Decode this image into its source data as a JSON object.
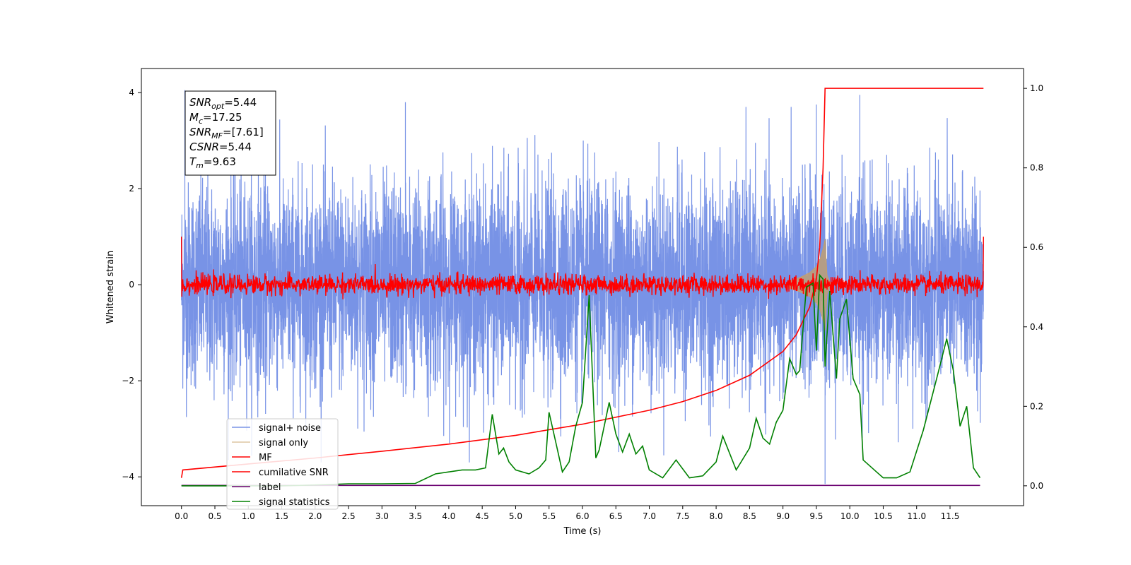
{
  "chart_data": {
    "type": "line",
    "xlabel": "Time (s)",
    "ylabel": "Whitened strain",
    "xlim": [
      -0.6,
      12.6
    ],
    "ylim_left": [
      -4.6,
      4.5
    ],
    "ylim_right": [
      -0.05,
      1.05
    ],
    "x_ticks": [
      "0.0",
      "0.5",
      "1.0",
      "1.5",
      "2.0",
      "2.5",
      "3.0",
      "3.5",
      "4.0",
      "4.5",
      "5.0",
      "5.5",
      "6.0",
      "6.5",
      "7.0",
      "7.5",
      "8.0",
      "8.5",
      "9.0",
      "9.5",
      "10.0",
      "10.5",
      "11.0",
      "11.5"
    ],
    "y_ticks_left": [
      "4",
      "2",
      "0",
      "−2",
      "−4"
    ],
    "y_ticks_right": [
      "1.0",
      "0.8",
      "0.6",
      "0.4",
      "0.2",
      "0.0"
    ],
    "grid": false,
    "legend_position": "lower-left",
    "legend": [
      "signal+ noise",
      "signal only",
      "MF",
      "cumilative SNR",
      "label",
      "signal statistics"
    ],
    "annotation": {
      "lines": [
        {
          "base": "SNR",
          "sub": "opt",
          "value": "=5.44"
        },
        {
          "base": "M",
          "sub": "c",
          "value": "=17.25"
        },
        {
          "base": "SNR",
          "sub": "MF",
          "value": "=[7.61]"
        },
        {
          "base": "CSNR",
          "sub": "",
          "value": "=5.44"
        },
        {
          "base": "T",
          "sub": "m",
          "value": "=9.63"
        }
      ]
    },
    "series": [
      {
        "name": "signal+ noise",
        "axis": "left",
        "color": "#7893e6",
        "description": "dense whitened noise, roughly Gaussian with sigma ~1, spanning t = 0 to 12 s",
        "t_range": [
          0.0,
          12.0
        ],
        "sigma": 1.05,
        "notable_extremes": [
          [
            0.05,
            4.05
          ],
          [
            3.35,
            3.8
          ],
          [
            9.63,
            -4.15
          ],
          [
            10.15,
            3.95
          ],
          [
            9.5,
            3.75
          ]
        ]
      },
      {
        "name": "signal only",
        "axis": "left",
        "color": "#c8a064",
        "description": "chirp envelope growing from t~9.1 and peaking near t=9.63",
        "t": [
          9.1,
          9.2,
          9.3,
          9.4,
          9.5,
          9.55,
          9.6,
          9.63,
          9.66,
          9.72
        ],
        "amplitude": [
          0.08,
          0.12,
          0.18,
          0.25,
          0.38,
          0.5,
          0.75,
          0.95,
          0.2,
          0.0
        ]
      },
      {
        "name": "MF",
        "axis": "left",
        "color": "#ff0000",
        "description": "matched filter output, noisy band around 0 with amplitude ~0.15, spikes to 1 at both ends",
        "t_range": [
          0.0,
          12.0
        ],
        "sigma": 0.1,
        "end_values": [
          1.0,
          1.0
        ]
      },
      {
        "name": "cumilative SNR",
        "axis": "right",
        "color": "#ff0000",
        "t": [
          0.0,
          0.02,
          1.0,
          2.0,
          3.0,
          4.0,
          5.0,
          6.0,
          7.0,
          7.5,
          8.0,
          8.5,
          9.0,
          9.2,
          9.4,
          9.5,
          9.55,
          9.6,
          9.63,
          12.0
        ],
        "values": [
          0.02,
          0.04,
          0.055,
          0.07,
          0.087,
          0.105,
          0.127,
          0.155,
          0.19,
          0.212,
          0.24,
          0.278,
          0.338,
          0.38,
          0.45,
          0.52,
          0.6,
          0.8,
          1.0,
          1.0
        ]
      },
      {
        "name": "label",
        "axis": "right",
        "color": "#6a0070",
        "t": [
          0.0,
          11.95
        ],
        "values": [
          0.001,
          0.001
        ]
      },
      {
        "name": "signal statistics",
        "axis": "right",
        "color": "#008000",
        "t": [
          0.0,
          0.5,
          1.0,
          1.5,
          2.0,
          2.5,
          3.0,
          3.5,
          3.8,
          4.0,
          4.2,
          4.4,
          4.55,
          4.65,
          4.75,
          4.82,
          4.9,
          5.0,
          5.2,
          5.35,
          5.45,
          5.5,
          5.6,
          5.7,
          5.8,
          5.9,
          6.0,
          6.1,
          6.2,
          6.25,
          6.3,
          6.4,
          6.5,
          6.6,
          6.7,
          6.8,
          6.9,
          7.0,
          7.2,
          7.4,
          7.6,
          7.8,
          8.0,
          8.1,
          8.3,
          8.5,
          8.6,
          8.7,
          8.8,
          8.9,
          9.0,
          9.1,
          9.2,
          9.25,
          9.35,
          9.45,
          9.5,
          9.55,
          9.6,
          9.63,
          9.7,
          9.8,
          9.85,
          9.95,
          10.05,
          10.15,
          10.2,
          10.3,
          10.4,
          10.5,
          10.7,
          10.9,
          11.1,
          11.3,
          11.45,
          11.55,
          11.65,
          11.75,
          11.85,
          11.95
        ],
        "values": [
          0.0,
          0.0,
          0.0,
          0.0,
          0.002,
          0.005,
          0.005,
          0.006,
          0.03,
          0.035,
          0.04,
          0.04,
          0.045,
          0.18,
          0.08,
          0.095,
          0.06,
          0.04,
          0.03,
          0.045,
          0.065,
          0.185,
          0.11,
          0.035,
          0.06,
          0.15,
          0.21,
          0.48,
          0.07,
          0.09,
          0.13,
          0.21,
          0.13,
          0.085,
          0.13,
          0.08,
          0.1,
          0.04,
          0.02,
          0.065,
          0.02,
          0.025,
          0.06,
          0.125,
          0.04,
          0.095,
          0.17,
          0.12,
          0.105,
          0.16,
          0.19,
          0.32,
          0.28,
          0.29,
          0.5,
          0.51,
          0.34,
          0.53,
          0.52,
          0.3,
          0.49,
          0.27,
          0.42,
          0.47,
          0.27,
          0.23,
          0.065,
          0.05,
          0.035,
          0.02,
          0.02,
          0.035,
          0.14,
          0.27,
          0.37,
          0.29,
          0.15,
          0.2,
          0.045,
          0.02
        ]
      }
    ]
  }
}
